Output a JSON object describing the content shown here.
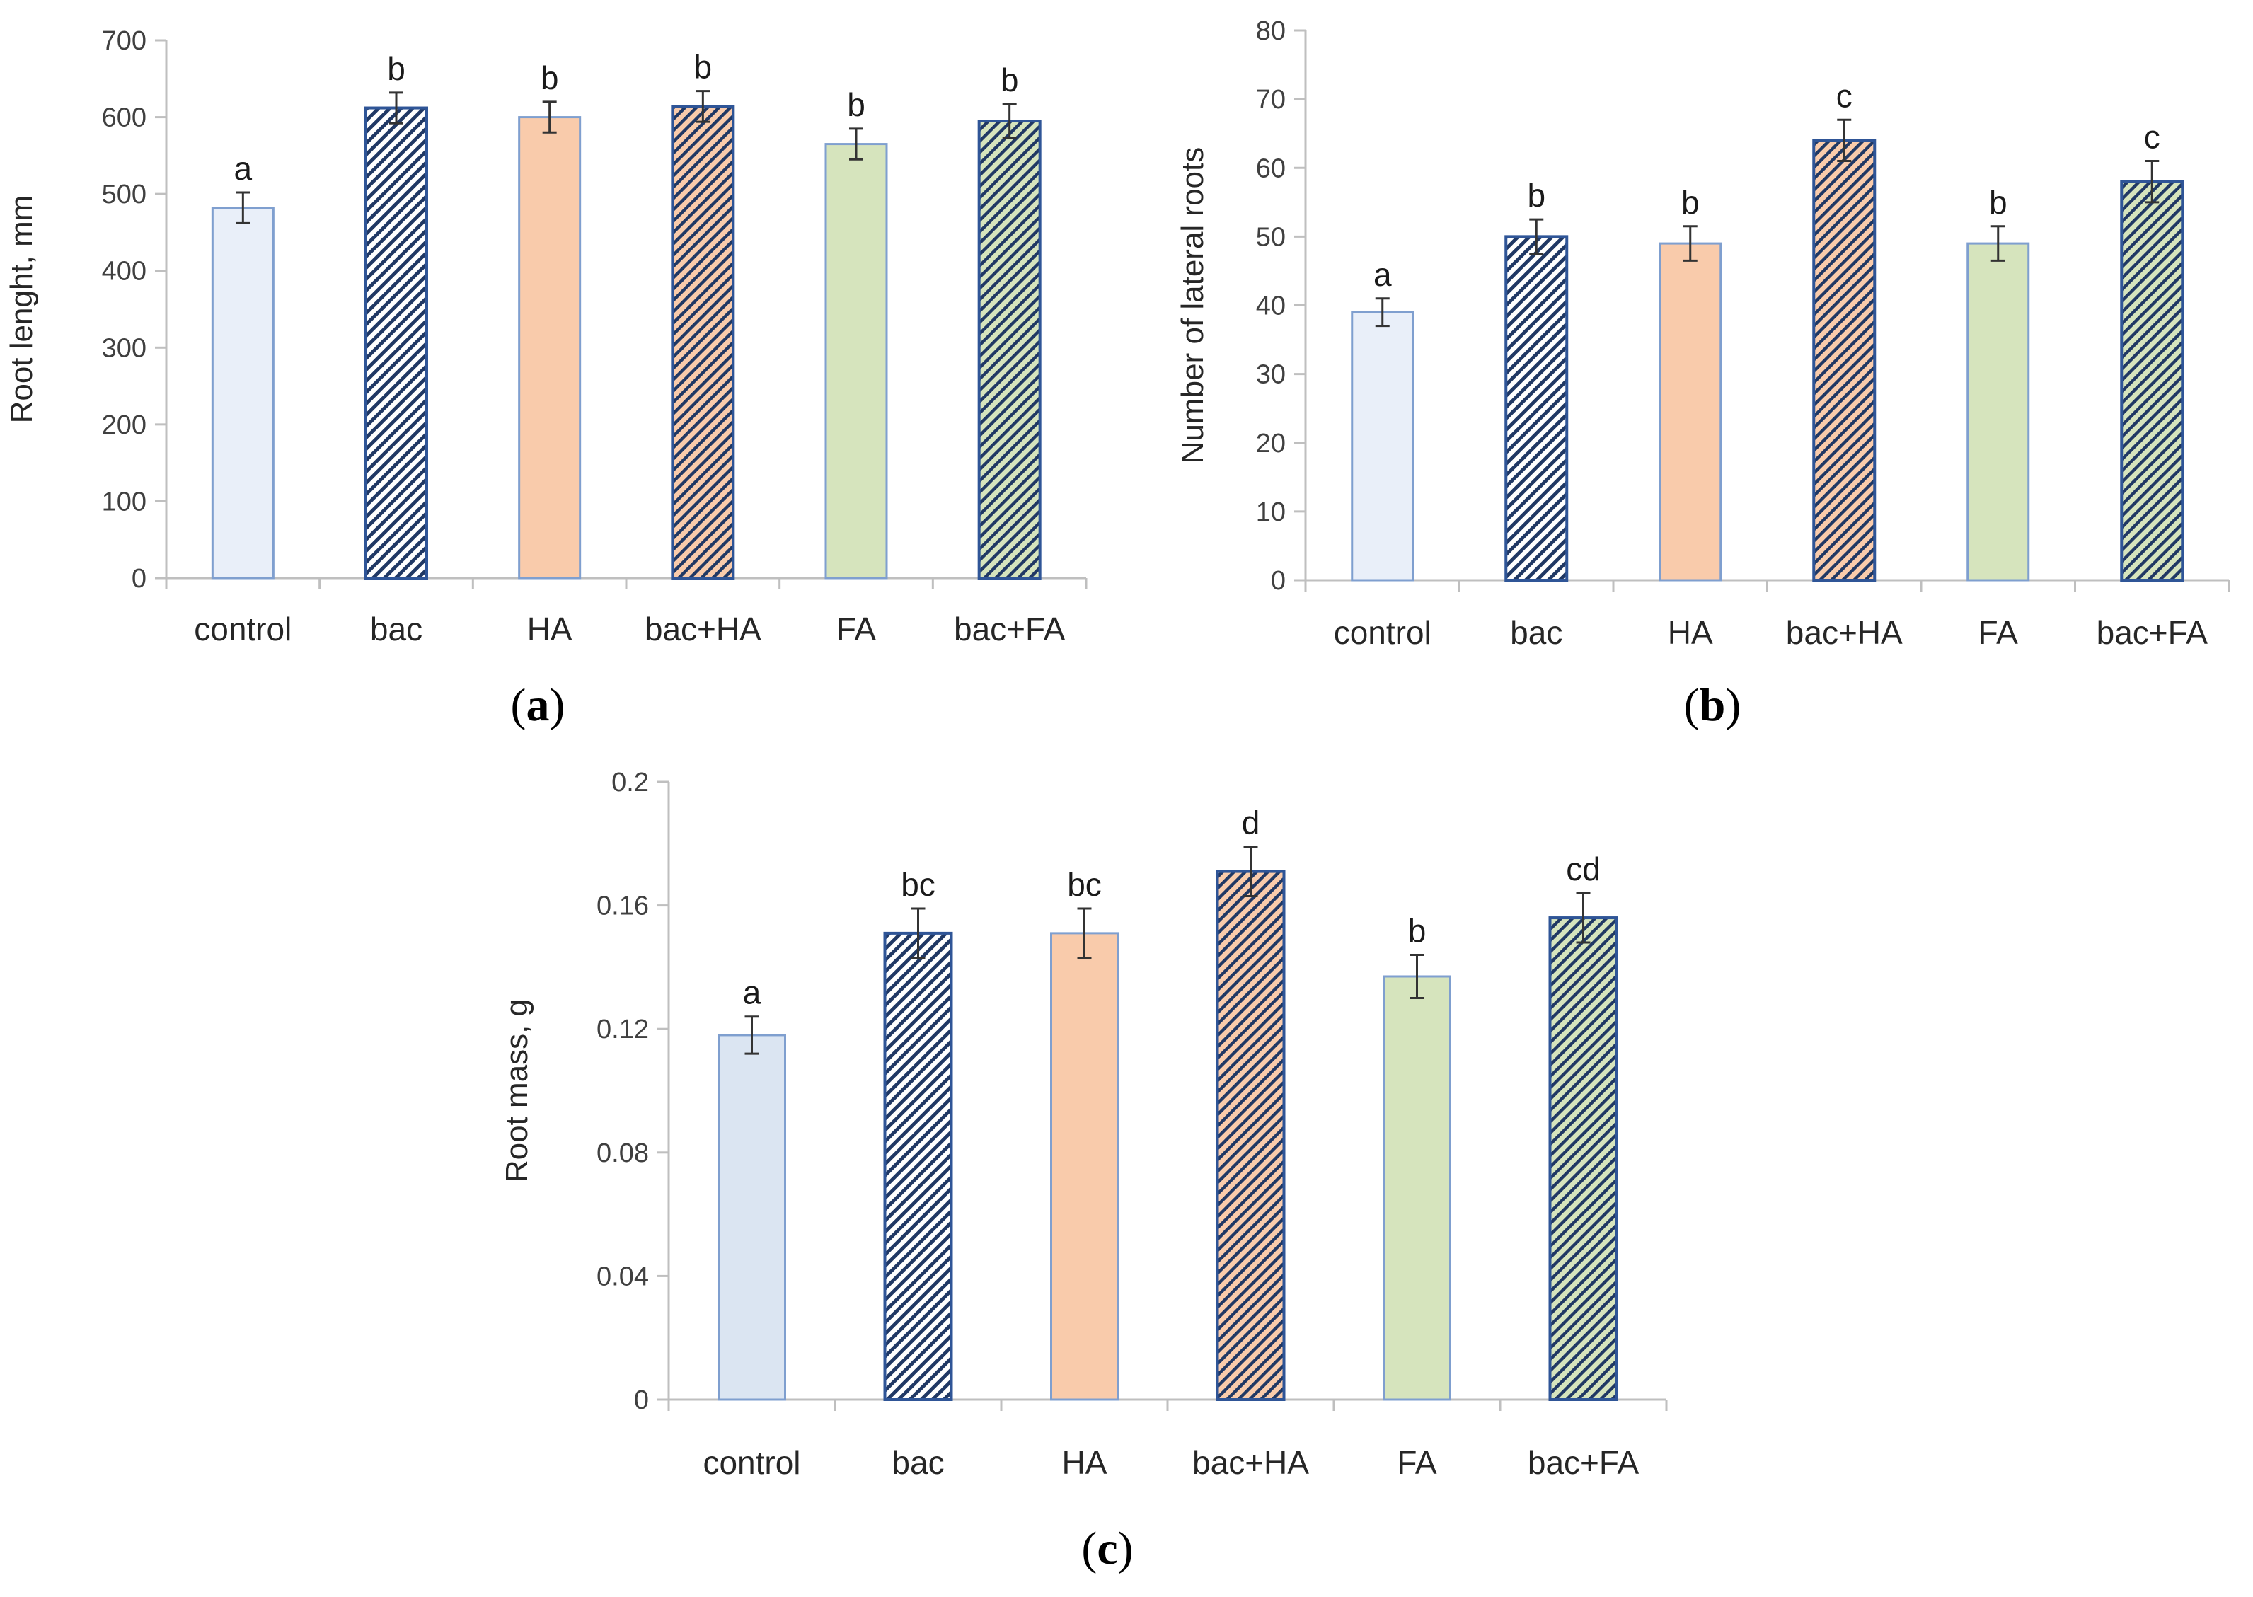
{
  "colors": {
    "control_fill": "#e9eff9",
    "control_fill_c": "#dbe5f2",
    "bar_outline": "#7f9fcf",
    "hatch_outline": "#2f5597",
    "hatch_line": "#203864",
    "ha_fill": "#f9cbab",
    "fa_fill": "#d6e4bd",
    "hatch_bg_bac": "#ffffff",
    "hatch_bg_bacha": "#f9cbab",
    "hatch_bg_bacfa": "#d6e4bd"
  },
  "chart_data": [
    {
      "panel": "a",
      "panel_label": "a",
      "type": "bar",
      "ylabel": "Root lenght, mm",
      "xlabel": "",
      "ylim": [
        0,
        700
      ],
      "yticks": [
        "0",
        "100",
        "200",
        "300",
        "400",
        "500",
        "600",
        "700"
      ],
      "categories": [
        "control",
        "bac",
        "HA",
        "bac+HA",
        "FA",
        "bac+FA"
      ],
      "values": [
        482,
        612,
        600,
        614,
        565,
        595
      ],
      "errors": [
        20,
        20,
        20,
        20,
        20,
        22
      ],
      "significance": [
        "a",
        "b",
        "b",
        "b",
        "b",
        "b"
      ],
      "fills": [
        "plain",
        "hatch",
        "plain",
        "hatch",
        "plain",
        "hatch"
      ]
    },
    {
      "panel": "b",
      "panel_label": "b",
      "type": "bar",
      "ylabel": "Number of lateral roots",
      "xlabel": "",
      "ylim": [
        0,
        80
      ],
      "yticks": [
        "0",
        "10",
        "20",
        "30",
        "40",
        "50",
        "60",
        "70",
        "80"
      ],
      "categories": [
        "control",
        "bac",
        "HA",
        "bac+HA",
        "FA",
        "bac+FA"
      ],
      "values": [
        39,
        50,
        49,
        64,
        49,
        58
      ],
      "errors": [
        2,
        2.5,
        2.5,
        3,
        2.5,
        3
      ],
      "significance": [
        "a",
        "b",
        "b",
        "c",
        "b",
        "c"
      ],
      "fills": [
        "plain",
        "hatch",
        "plain",
        "hatch",
        "plain",
        "hatch"
      ]
    },
    {
      "panel": "c",
      "panel_label": "c",
      "type": "bar",
      "ylabel": "Root  mass, g",
      "xlabel": "",
      "ylim": [
        0,
        0.2
      ],
      "yticks": [
        "0",
        "0.04",
        "0.08",
        "0.12",
        "0.16",
        "0.2"
      ],
      "categories": [
        "control",
        "bac",
        "HA",
        "bac+HA",
        "FA",
        "bac+FA"
      ],
      "values": [
        0.118,
        0.151,
        0.151,
        0.171,
        0.137,
        0.156
      ],
      "errors": [
        0.006,
        0.008,
        0.008,
        0.008,
        0.007,
        0.008
      ],
      "significance": [
        "a",
        "bc",
        "bc",
        "d",
        "b",
        "cd"
      ],
      "fills": [
        "plain",
        "hatch",
        "plain",
        "hatch",
        "plain",
        "hatch"
      ]
    }
  ]
}
